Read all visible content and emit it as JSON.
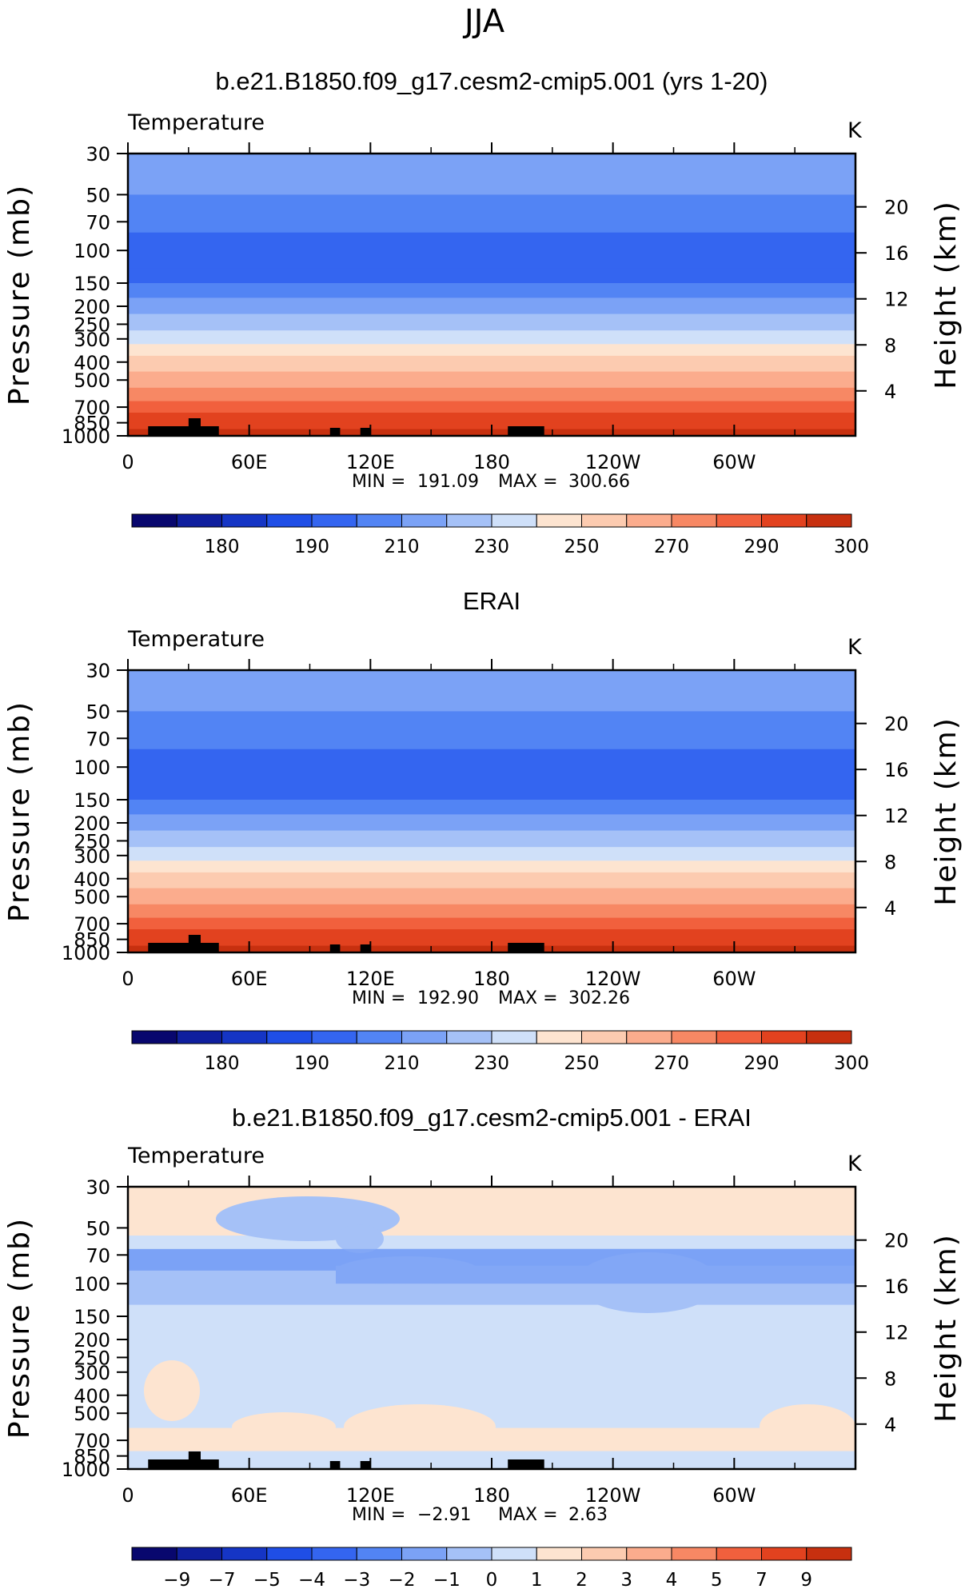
{
  "figure_title": "JJA",
  "colors": {
    "abs_levels": [
      "#08076e",
      "#0f1f9e",
      "#1535c5",
      "#1f4ee6",
      "#3465f0",
      "#5284f4",
      "#7ba2f6",
      "#a5c1f7",
      "#cfe0f9",
      "#fde4d0",
      "#fccbb0",
      "#fbac8d",
      "#f78864",
      "#f1603d",
      "#e2421f",
      "#c7300f",
      "#a52009",
      "#7d0b05"
    ],
    "diff_levels": [
      "#08076e",
      "#0f1f9e",
      "#1535c5",
      "#1f4ee6",
      "#3465f0",
      "#5284f4",
      "#7ba2f6",
      "#a5c1f7",
      "#cfe0f9",
      "#fde4d0",
      "#fccbb0",
      "#fbac8d",
      "#f78864",
      "#f1603d",
      "#e2421f",
      "#c7300f",
      "#a52009",
      "#7d0b05"
    ],
    "topography": "#000000"
  },
  "chart_data": [
    {
      "type": "heatmap",
      "title": "b.e21.B1850.f09_g17.cesm2-cmip5.001 (yrs 1-20)",
      "field_label": "Temperature",
      "units": "K",
      "ylabel": "Pressure (mb)",
      "ylabel_right": "Height (km)",
      "x_ticks": [
        "0",
        "60E",
        "120E",
        "180",
        "120W",
        "60W"
      ],
      "y_ticks": [
        "30",
        "50",
        "70",
        "100",
        "150",
        "200",
        "250",
        "300",
        "400",
        "500",
        "700",
        "850",
        "1000"
      ],
      "y_ticks_right": [
        "20",
        "16",
        "12",
        "8",
        "4"
      ],
      "min_label": "MIN",
      "max_label": "MAX",
      "min": "191.09",
      "max": "300.66",
      "colorbar_ticks": [
        "180",
        "190",
        "210",
        "230",
        "250",
        "270",
        "290",
        "300"
      ],
      "levels": [
        {
          "p": 30,
          "band": 6
        },
        {
          "p": 40,
          "band": 6
        },
        {
          "p": 50,
          "band": 5
        },
        {
          "p": 70,
          "band": 5
        },
        {
          "p": 80,
          "band": 4
        },
        {
          "p": 100,
          "band": 4
        },
        {
          "p": 125,
          "band": 4
        },
        {
          "p": 150,
          "band": 5
        },
        {
          "p": 180,
          "band": 6
        },
        {
          "p": 220,
          "band": 7
        },
        {
          "p": 270,
          "band": 8
        },
        {
          "p": 320,
          "band": 9
        },
        {
          "p": 370,
          "band": 10
        },
        {
          "p": 450,
          "band": 11
        },
        {
          "p": 550,
          "band": 12
        },
        {
          "p": 650,
          "band": 13
        },
        {
          "p": 750,
          "band": 14
        },
        {
          "p": 850,
          "band": 14
        },
        {
          "p": 920,
          "band": 15
        },
        {
          "p": 1000,
          "band": 16
        }
      ]
    },
    {
      "type": "heatmap",
      "title": "ERAI",
      "field_label": "Temperature",
      "units": "K",
      "ylabel": "Pressure (mb)",
      "ylabel_right": "Height (km)",
      "x_ticks": [
        "0",
        "60E",
        "120E",
        "180",
        "120W",
        "60W"
      ],
      "y_ticks": [
        "30",
        "50",
        "70",
        "100",
        "150",
        "200",
        "250",
        "300",
        "400",
        "500",
        "700",
        "850",
        "1000"
      ],
      "y_ticks_right": [
        "20",
        "16",
        "12",
        "8",
        "4"
      ],
      "min_label": "MIN",
      "max_label": "MAX",
      "min": "192.90",
      "max": "302.26",
      "colorbar_ticks": [
        "180",
        "190",
        "210",
        "230",
        "250",
        "270",
        "290",
        "300"
      ],
      "levels": [
        {
          "p": 30,
          "band": 6
        },
        {
          "p": 40,
          "band": 6
        },
        {
          "p": 50,
          "band": 5
        },
        {
          "p": 70,
          "band": 5
        },
        {
          "p": 80,
          "band": 4
        },
        {
          "p": 100,
          "band": 4
        },
        {
          "p": 125,
          "band": 4
        },
        {
          "p": 150,
          "band": 5
        },
        {
          "p": 180,
          "band": 6
        },
        {
          "p": 220,
          "band": 7
        },
        {
          "p": 270,
          "band": 8
        },
        {
          "p": 320,
          "band": 9
        },
        {
          "p": 370,
          "band": 10
        },
        {
          "p": 450,
          "band": 11
        },
        {
          "p": 550,
          "band": 12
        },
        {
          "p": 650,
          "band": 13
        },
        {
          "p": 750,
          "band": 14
        },
        {
          "p": 850,
          "band": 14
        },
        {
          "p": 920,
          "band": 15
        },
        {
          "p": 1000,
          "band": 16
        }
      ]
    },
    {
      "type": "heatmap",
      "title": "b.e21.B1850.f09_g17.cesm2-cmip5.001 - ERAI",
      "field_label": "Temperature",
      "units": "K",
      "ylabel": "Pressure (mb)",
      "ylabel_right": "Height (km)",
      "x_ticks": [
        "0",
        "60E",
        "120E",
        "180",
        "120W",
        "60W"
      ],
      "y_ticks": [
        "30",
        "50",
        "70",
        "100",
        "150",
        "200",
        "250",
        "300",
        "400",
        "500",
        "700",
        "850",
        "1000"
      ],
      "y_ticks_right": [
        "20",
        "16",
        "12",
        "8",
        "4"
      ],
      "min_label": "MIN",
      "max_label": "MAX",
      "min": "−2.91",
      "max": "2.63",
      "colorbar_ticks": [
        "−9",
        "−7",
        "−5",
        "−4",
        "−3",
        "−2",
        "−1",
        "0",
        "1",
        "2",
        "3",
        "4",
        "5",
        "7",
        "9"
      ],
      "levels": [
        {
          "p": 30,
          "band": 9
        },
        {
          "p": 45,
          "band": 9
        },
        {
          "p": 55,
          "band": 8
        },
        {
          "p": 65,
          "band": 6
        },
        {
          "p": 80,
          "band": 7
        },
        {
          "p": 100,
          "band": 7
        },
        {
          "p": 130,
          "band": 8
        },
        {
          "p": 200,
          "band": 8
        },
        {
          "p": 300,
          "band": 8
        },
        {
          "p": 500,
          "band": 8
        },
        {
          "p": 600,
          "band": 9
        },
        {
          "p": 800,
          "band": 8
        },
        {
          "p": 1000,
          "band": 8
        }
      ]
    }
  ]
}
